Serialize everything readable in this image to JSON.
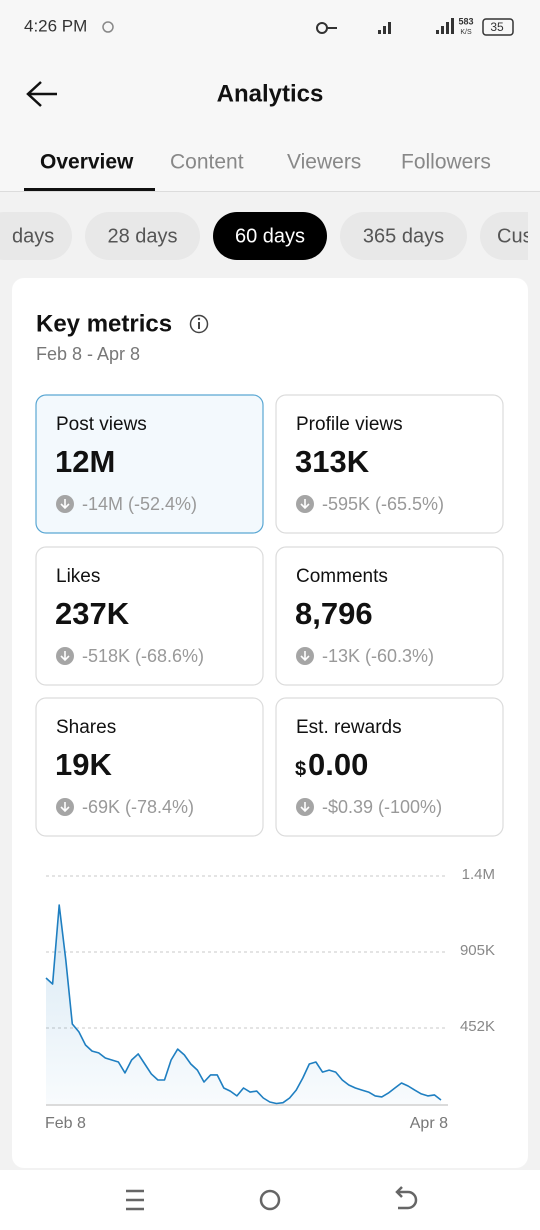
{
  "status_bar": {
    "time": "4:26 PM",
    "speed": "583",
    "speed_unit": "K/S",
    "battery": "35"
  },
  "header": {
    "title": "Analytics"
  },
  "tabs": [
    "Overview",
    "Content",
    "Viewers",
    "Followers"
  ],
  "ranges": [
    "days",
    "28 days",
    "60 days",
    "365 days",
    "Cus"
  ],
  "card": {
    "title": "Key metrics",
    "date_range": "Feb 8 - Apr 8",
    "metrics": [
      {
        "label": "Post views",
        "value": "12M",
        "change": "-14M (-52.4%)",
        "selected": true
      },
      {
        "label": "Profile views",
        "value": "313K",
        "change": "-595K (-65.5%)"
      },
      {
        "label": "Likes",
        "value": "237K",
        "change": "-518K (-68.6%)"
      },
      {
        "label": "Comments",
        "value": "8,796",
        "change": "-13K (-60.3%)"
      },
      {
        "label": "Shares",
        "value": "19K",
        "change": "-69K (-78.4%)"
      },
      {
        "label": "Est. rewards",
        "currency": "$",
        "value": "0.00",
        "change": "-$0.39 (-100%)"
      }
    ]
  },
  "chart_data": {
    "type": "line",
    "color": "#1f7fc1",
    "categories": [
      "Feb 8",
      null,
      null,
      null,
      null,
      null,
      null,
      null,
      null,
      null,
      null,
      null,
      null,
      null,
      null,
      null,
      null,
      null,
      null,
      null,
      null,
      null,
      null,
      null,
      null,
      null,
      null,
      null,
      null,
      null,
      null,
      null,
      null,
      null,
      null,
      null,
      null,
      null,
      null,
      null,
      null,
      null,
      null,
      null,
      null,
      null,
      null,
      null,
      null,
      null,
      null,
      null,
      null,
      null,
      null,
      null,
      null,
      null,
      null,
      null,
      "Apr 8"
    ],
    "values": [
      750000,
      714000,
      1184000,
      857000,
      476000,
      429000,
      351000,
      315000,
      304000,
      274000,
      262000,
      250000,
      185000,
      262000,
      298000,
      238000,
      179000,
      143000,
      143000,
      262000,
      327000,
      292000,
      238000,
      202000,
      131000,
      173000,
      173000,
      95000,
      77000,
      48000,
      95000,
      71000,
      77000,
      36000,
      12000,
      3000,
      8000,
      36000,
      83000,
      155000,
      238000,
      250000,
      190000,
      202000,
      190000,
      143000,
      113000,
      95000,
      83000,
      71000,
      48000,
      42000,
      65000,
      95000,
      125000,
      107000,
      83000,
      60000,
      48000,
      54000,
      24000
    ],
    "ylim": [
      0,
      1357000
    ],
    "yticks": [
      {
        "value": 452000,
        "label": "452K"
      },
      {
        "value": 905000,
        "label": "905K"
      },
      {
        "value": 1357000,
        "label": "1.4M"
      }
    ],
    "grid": true
  }
}
